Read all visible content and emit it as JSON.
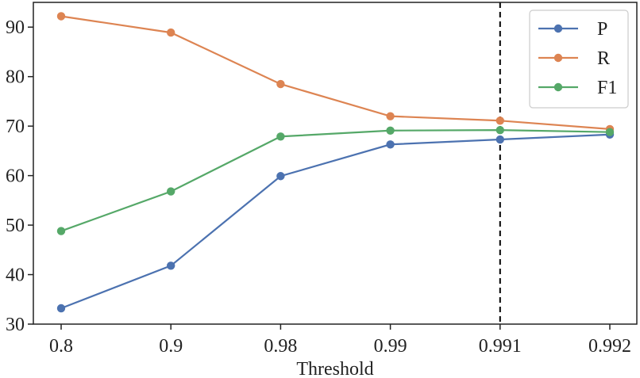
{
  "chart_data": {
    "type": "line",
    "title": "",
    "xlabel": "Threshold",
    "ylabel": "",
    "categories": [
      "0.8",
      "0.9",
      "0.98",
      "0.99",
      "0.991",
      "0.992"
    ],
    "ylim": [
      30,
      95
    ],
    "yticks": [
      30,
      40,
      50,
      60,
      70,
      80,
      90
    ],
    "grid": false,
    "legend_position": "top-right",
    "vertical_line": {
      "at": "0.991",
      "style": "dashed",
      "color": "#000000"
    },
    "series": [
      {
        "name": "P",
        "color": "#4c72b0",
        "values": [
          33.2,
          41.8,
          59.9,
          66.3,
          67.3,
          68.3
        ]
      },
      {
        "name": "R",
        "color": "#dd8452",
        "values": [
          92.2,
          88.9,
          78.5,
          72.0,
          71.1,
          69.4
        ]
      },
      {
        "name": "F1",
        "color": "#55a868",
        "values": [
          48.8,
          56.8,
          67.9,
          69.1,
          69.2,
          68.8
        ]
      }
    ]
  }
}
